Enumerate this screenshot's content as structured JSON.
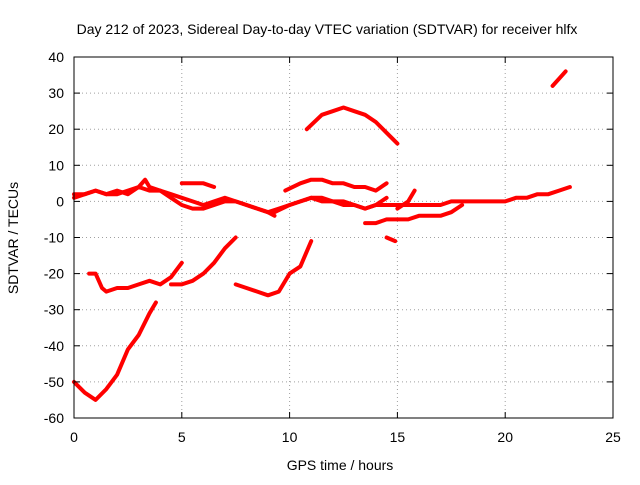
{
  "chart_data": {
    "type": "line",
    "title": "Day 212 of 2023, Sidereal Day-to-day VTEC variation (SDTVAR) for receiver hlfx",
    "xlabel": "GPS time / hours",
    "ylabel": "SDTVAR / TECUs",
    "xlim": [
      0,
      25
    ],
    "ylim": [
      -60,
      40
    ],
    "xticks": [
      0,
      5,
      10,
      15,
      20,
      25
    ],
    "yticks": [
      -60,
      -50,
      -40,
      -30,
      -20,
      -10,
      0,
      10,
      20,
      30,
      40
    ],
    "grid": true,
    "series_color": "#ff0000",
    "series": [
      {
        "name": "s1",
        "x": [
          0.0,
          0.5,
          1.0,
          1.5,
          2.0,
          2.5,
          3.0,
          3.5,
          4.0,
          4.5,
          5.0,
          5.5,
          6.0,
          6.5,
          7.0,
          7.5,
          8.0,
          8.5,
          9.0,
          9.5,
          10.0,
          10.5,
          11.0,
          11.5,
          12.0,
          12.5,
          13.0,
          13.5,
          14.0,
          14.5,
          15.0,
          15.5,
          16.0,
          16.5,
          17.0,
          17.5,
          18.0,
          18.5,
          19.0,
          19.5,
          20.0,
          20.5,
          21.0,
          21.5,
          22.0,
          22.5,
          23.0
        ],
        "y": [
          1,
          2,
          3,
          2,
          3,
          2,
          4,
          3,
          3,
          2,
          1,
          0,
          -1,
          0,
          1,
          0,
          -1,
          -2,
          -3,
          -2,
          -1,
          0,
          1,
          0,
          0,
          -1,
          -1,
          -2,
          -1,
          -1,
          -1,
          -1,
          -1,
          -1,
          -1,
          0,
          0,
          0,
          0,
          0,
          0,
          1,
          1,
          2,
          2,
          3,
          4
        ]
      },
      {
        "name": "s2",
        "x": [
          0.0,
          0.5,
          1.0,
          1.5,
          2.0,
          2.5,
          3.0,
          3.3,
          3.5,
          4.0,
          4.5,
          5.0,
          5.5,
          6.0,
          6.5,
          7.0,
          7.5,
          8.0,
          8.5,
          9.0,
          9.3
        ],
        "y": [
          2,
          2,
          3,
          2,
          2,
          3,
          4,
          6,
          4,
          3,
          1,
          -1,
          -2,
          -2,
          -1,
          0,
          0,
          -1,
          -2,
          -3,
          -4
        ]
      },
      {
        "name": "s3",
        "x": [
          5.0,
          5.5,
          6.0,
          6.5
        ],
        "y": [
          5,
          5,
          5,
          4
        ]
      },
      {
        "name": "s4",
        "x": [
          9.3,
          10.0,
          10.5,
          11.0,
          11.5,
          12.0,
          12.5,
          13.0,
          13.5,
          14.0,
          14.5
        ],
        "y": [
          -3,
          -1,
          0,
          1,
          1,
          0,
          0,
          -1,
          -2,
          -1,
          1
        ]
      },
      {
        "name": "s5",
        "x": [
          9.8,
          10.5,
          11.0,
          11.5,
          12.0,
          12.5,
          13.0,
          13.5,
          14.0,
          14.5
        ],
        "y": [
          3,
          5,
          6,
          6,
          5,
          5,
          4,
          4,
          3,
          5
        ]
      },
      {
        "name": "s6",
        "x": [
          10.8,
          11.5,
          12.0,
          12.5,
          13.0,
          13.5,
          14.0,
          14.5,
          15.0
        ],
        "y": [
          20,
          24,
          25,
          26,
          25,
          24,
          22,
          19,
          16
        ]
      },
      {
        "name": "s7",
        "x": [
          13.5,
          14.0,
          14.5,
          15.0,
          15.5,
          16.0,
          16.5,
          17.0,
          17.5,
          18.0
        ],
        "y": [
          -6,
          -6,
          -5,
          -5,
          -5,
          -4,
          -4,
          -4,
          -3,
          -1
        ]
      },
      {
        "name": "s8",
        "x": [
          14.5,
          14.9
        ],
        "y": [
          -10,
          -11
        ]
      },
      {
        "name": "s9",
        "x": [
          15.0,
          15.5,
          15.8
        ],
        "y": [
          -2,
          0,
          3
        ]
      },
      {
        "name": "s10",
        "x": [
          22.2,
          22.5,
          22.8
        ],
        "y": [
          32,
          34,
          36
        ]
      },
      {
        "name": "s11",
        "x": [
          0.7,
          1.0,
          1.3,
          1.5,
          2.0,
          2.5,
          3.0,
          3.5,
          4.0,
          4.5,
          5.0
        ],
        "y": [
          -20,
          -20,
          -24,
          -25,
          -24,
          -24,
          -23,
          -22,
          -23,
          -21,
          -17
        ]
      },
      {
        "name": "s12",
        "x": [
          4.5,
          5.0,
          5.5,
          6.0,
          6.5,
          7.0,
          7.5
        ],
        "y": [
          -23,
          -23,
          -22,
          -20,
          -17,
          -13,
          -10
        ]
      },
      {
        "name": "s13",
        "x": [
          7.5,
          8.0,
          8.5,
          9.0,
          9.5,
          10.0,
          10.5,
          11.0
        ],
        "y": [
          -23,
          -24,
          -25,
          -26,
          -25,
          -20,
          -18,
          -11
        ]
      },
      {
        "name": "s14",
        "x": [
          0.0,
          0.5,
          1.0,
          1.5,
          2.0,
          2.5,
          3.0,
          3.5,
          3.8
        ],
        "y": [
          -50,
          -53,
          -55,
          -52,
          -48,
          -41,
          -37,
          -31,
          -28
        ]
      }
    ]
  }
}
